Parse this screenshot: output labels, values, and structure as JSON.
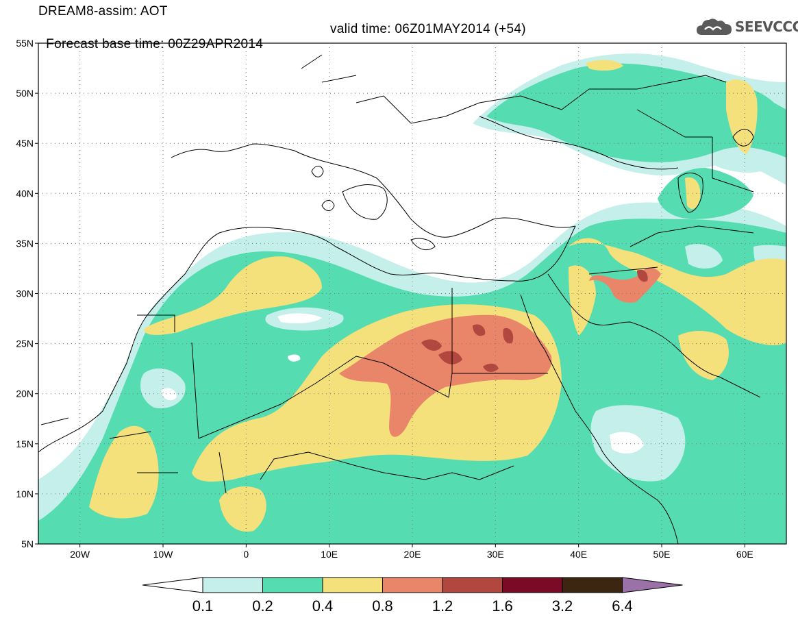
{
  "title": {
    "line1": "DREAM8-assim: AOT",
    "base_time": "Forecast base time: 00Z29APR2014",
    "valid_time": "valid time: 06Z01MAY2014 (+54)"
  },
  "logo": {
    "text": "SEEVCCC",
    "icon": "cloud-icon"
  },
  "map": {
    "lat_labels": [
      "55N",
      "50N",
      "45N",
      "40N",
      "35N",
      "30N",
      "25N",
      "20N",
      "15N",
      "10N",
      "5N"
    ],
    "lat_values": [
      55,
      50,
      45,
      40,
      35,
      30,
      25,
      20,
      15,
      10,
      5
    ],
    "lon_labels": [
      "20W",
      "10W",
      "0",
      "10E",
      "20E",
      "30E",
      "40E",
      "50E",
      "60E"
    ],
    "lon_values": [
      -20,
      -10,
      0,
      10,
      20,
      30,
      40,
      50,
      60
    ],
    "lat_range": [
      5,
      55
    ],
    "lon_range": [
      -25,
      65
    ]
  },
  "colorbar": {
    "labels": [
      "0.1",
      "0.2",
      "0.4",
      "0.8",
      "1.2",
      "1.6",
      "3.2",
      "6.4"
    ],
    "colors": [
      "#c4efea",
      "#56dcb1",
      "#f5e17b",
      "#e9866a",
      "#b2473f",
      "#7a0a26",
      "#3c2612",
      "#9b72a8"
    ],
    "low_color": "#ffffff"
  }
}
